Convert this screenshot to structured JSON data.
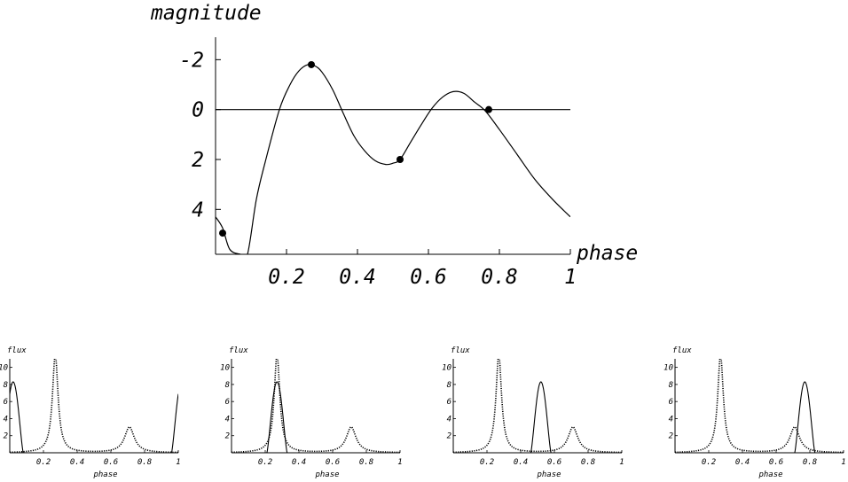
{
  "chart_data": [
    {
      "type": "line",
      "title": "",
      "xlabel": "phase",
      "ylabel": "magnitude",
      "xlim": [
        0,
        1
      ],
      "ylim": [
        5.8,
        -2.9
      ],
      "y_inverted": true,
      "grid": false,
      "x_ticks": [
        0.2,
        0.4,
        0.6,
        0.8,
        1
      ],
      "x_tick_labels": [
        "0.2",
        "0.4",
        "0.6",
        "0.8",
        "1"
      ],
      "y_ticks": [
        -2,
        0,
        2,
        4
      ],
      "y_tick_labels": [
        "-2",
        "0",
        "2",
        "4"
      ],
      "reference_line_y": 0,
      "curve": [
        {
          "x": 0.0,
          "y": 4.3
        },
        {
          "x": 0.02,
          "y": 4.75
        },
        {
          "x": 0.04,
          "y": 5.6
        },
        {
          "x": 0.07,
          "y": 5.8
        },
        {
          "x": 0.09,
          "y": 5.8
        },
        {
          "x": 0.115,
          "y": 3.6
        },
        {
          "x": 0.14,
          "y": 2.1
        },
        {
          "x": 0.18,
          "y": 0.0
        },
        {
          "x": 0.21,
          "y": -1.0
        },
        {
          "x": 0.235,
          "y": -1.55
        },
        {
          "x": 0.26,
          "y": -1.8
        },
        {
          "x": 0.28,
          "y": -1.75
        },
        {
          "x": 0.3,
          "y": -1.5
        },
        {
          "x": 0.33,
          "y": -0.8
        },
        {
          "x": 0.36,
          "y": 0.15
        },
        {
          "x": 0.39,
          "y": 1.05
        },
        {
          "x": 0.42,
          "y": 1.65
        },
        {
          "x": 0.45,
          "y": 2.05
        },
        {
          "x": 0.48,
          "y": 2.2
        },
        {
          "x": 0.5,
          "y": 2.15
        },
        {
          "x": 0.52,
          "y": 2.0
        },
        {
          "x": 0.55,
          "y": 1.3
        },
        {
          "x": 0.58,
          "y": 0.6
        },
        {
          "x": 0.61,
          "y": -0.05
        },
        {
          "x": 0.64,
          "y": -0.5
        },
        {
          "x": 0.67,
          "y": -0.72
        },
        {
          "x": 0.7,
          "y": -0.65
        },
        {
          "x": 0.73,
          "y": -0.3
        },
        {
          "x": 0.76,
          "y": 0.05
        },
        {
          "x": 0.8,
          "y": 0.8
        },
        {
          "x": 0.85,
          "y": 1.8
        },
        {
          "x": 0.9,
          "y": 2.8
        },
        {
          "x": 0.95,
          "y": 3.6
        },
        {
          "x": 1.0,
          "y": 4.3
        }
      ],
      "points": [
        {
          "x": 0.02,
          "y": 4.95
        },
        {
          "x": 0.27,
          "y": -1.8
        },
        {
          "x": 0.52,
          "y": 2.0
        },
        {
          "x": 0.77,
          "y": 0.0
        }
      ]
    },
    {
      "type": "line",
      "xlabel": "phase",
      "ylabel": "flux",
      "xlim": [
        0,
        1
      ],
      "ylim": [
        0,
        11
      ],
      "x_tick_labels": [
        "0.2",
        "0.4",
        "0.6",
        "0.8",
        "1"
      ],
      "y_tick_labels": [
        "2",
        "4",
        "6",
        "8",
        "10"
      ],
      "dotted_peaks": [
        {
          "x": 0.27,
          "height": 11.5,
          "width": 0.02
        },
        {
          "x": 0.71,
          "height": 3.0,
          "width": 0.035
        }
      ],
      "solid_pulse": {
        "center": 0.02,
        "height": 8.3,
        "width": 0.06,
        "wraps": true
      }
    },
    {
      "type": "line",
      "xlabel": "phase",
      "ylabel": "flux",
      "xlim": [
        0,
        1
      ],
      "ylim": [
        0,
        11
      ],
      "x_tick_labels": [
        "0.2",
        "0.4",
        "0.6",
        "0.8",
        "1"
      ],
      "y_tick_labels": [
        "2",
        "4",
        "6",
        "8",
        "10"
      ],
      "dotted_peaks": [
        {
          "x": 0.27,
          "height": 11.5,
          "width": 0.02
        },
        {
          "x": 0.71,
          "height": 3.0,
          "width": 0.035
        }
      ],
      "solid_pulse": {
        "center": 0.27,
        "height": 8.3,
        "width": 0.06,
        "wraps": false
      }
    },
    {
      "type": "line",
      "xlabel": "phase",
      "ylabel": "flux",
      "xlim": [
        0,
        1
      ],
      "ylim": [
        0,
        11
      ],
      "x_tick_labels": [
        "0.2",
        "0.4",
        "0.6",
        "0.8",
        "1"
      ],
      "y_tick_labels": [
        "2",
        "4",
        "6",
        "8",
        "10"
      ],
      "dotted_peaks": [
        {
          "x": 0.27,
          "height": 11.5,
          "width": 0.02
        },
        {
          "x": 0.71,
          "height": 3.0,
          "width": 0.035
        }
      ],
      "solid_pulse": {
        "center": 0.52,
        "height": 8.3,
        "width": 0.06,
        "wraps": false
      }
    },
    {
      "type": "line",
      "xlabel": "phase",
      "ylabel": "flux",
      "xlim": [
        0,
        1
      ],
      "ylim": [
        0,
        11
      ],
      "x_tick_labels": [
        "0.2",
        "0.4",
        "0.6",
        "0.8",
        "1"
      ],
      "y_tick_labels": [
        "2",
        "4",
        "6",
        "8",
        "10"
      ],
      "dotted_peaks": [
        {
          "x": 0.27,
          "height": 11.5,
          "width": 0.02
        },
        {
          "x": 0.71,
          "height": 3.0,
          "width": 0.035
        }
      ],
      "solid_pulse": {
        "center": 0.77,
        "height": 8.3,
        "width": 0.06,
        "wraps": false
      }
    }
  ]
}
